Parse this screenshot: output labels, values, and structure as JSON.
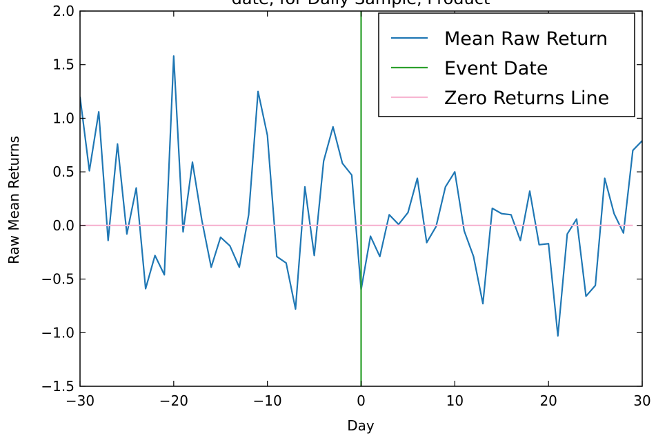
{
  "chart_data": {
    "type": "line",
    "title": "date, for Daily Sample, Product",
    "xlabel": "Day",
    "ylabel": "Raw Mean Returns",
    "xlim": [
      -30,
      30
    ],
    "ylim": [
      -1.5,
      2.0
    ],
    "xticks": [
      -30,
      -20,
      -10,
      0,
      10,
      20,
      30
    ],
    "xtick_labels": [
      "−30",
      "−20",
      "−10",
      "0",
      "10",
      "20",
      "30"
    ],
    "yticks": [
      -1.5,
      -1.0,
      -0.5,
      0.0,
      0.5,
      1.0,
      1.5,
      2.0
    ],
    "ytick_labels": [
      "−1.5",
      "−1.0",
      "−0.5",
      "0.0",
      "0.5",
      "1.0",
      "1.5",
      "2.0"
    ],
    "grid": false,
    "legend_position": "top-right",
    "series": [
      {
        "name": "Mean Raw Return",
        "color": "#1f77b4",
        "kind": "line",
        "x": [
          -30,
          -29,
          -28,
          -27,
          -26,
          -25,
          -24,
          -23,
          -22,
          -21,
          -20,
          -19,
          -18,
          -17,
          -16,
          -15,
          -14,
          -13,
          -12,
          -11,
          -10,
          -9,
          -8,
          -7,
          -6,
          -5,
          -4,
          -3,
          -2,
          -1,
          0,
          1,
          2,
          3,
          4,
          5,
          6,
          7,
          8,
          9,
          10,
          11,
          12,
          13,
          14,
          15,
          16,
          17,
          18,
          19,
          20,
          21,
          22,
          23,
          24,
          25,
          26,
          27,
          28,
          29,
          30
        ],
        "y": [
          1.2,
          0.51,
          1.06,
          -0.14,
          0.76,
          -0.08,
          0.35,
          -0.59,
          -0.28,
          -0.46,
          1.58,
          -0.06,
          0.59,
          0.05,
          -0.39,
          -0.11,
          -0.19,
          -0.39,
          0.1,
          1.25,
          0.84,
          -0.29,
          -0.35,
          -0.78,
          0.36,
          -0.28,
          0.6,
          0.92,
          0.58,
          0.47,
          -0.6,
          -0.1,
          -0.29,
          0.1,
          0.01,
          0.12,
          0.44,
          -0.16,
          -0.01,
          0.36,
          0.5,
          -0.05,
          -0.29,
          -0.73,
          0.16,
          0.11,
          0.1,
          -0.14,
          0.32,
          -0.18,
          -0.17,
          -1.03,
          -0.08,
          0.06,
          -0.66,
          -0.56,
          0.44,
          0.11,
          -0.07,
          0.7,
          0.79
        ]
      },
      {
        "name": "Event Date",
        "color": "#2ca02c",
        "kind": "vline",
        "x": [
          0,
          0
        ],
        "y": [
          -1.5,
          2.0
        ]
      },
      {
        "name": "Zero Returns Line",
        "color": "#f7b6d2",
        "kind": "hline",
        "x": [
          -30,
          29
        ],
        "y": [
          0,
          0
        ]
      }
    ]
  }
}
